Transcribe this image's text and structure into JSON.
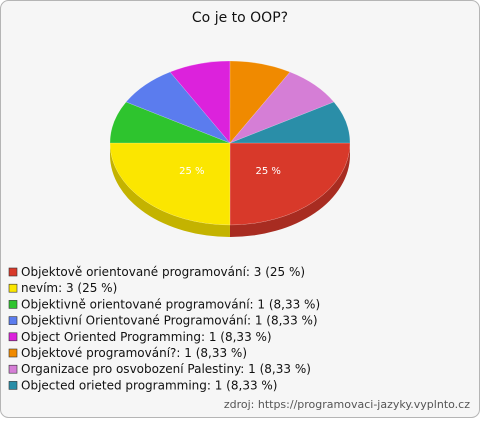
{
  "chart_data": {
    "type": "pie3d",
    "title": "Co je to OOP?",
    "categories": [
      "Objektově orientované programování: 3 (25 %)",
      "nevím: 3 (25 %)",
      "Objektivně orientované programování: 1 (8,33 %)",
      "Objektivní Orientované Programování: 1 (8,33 %)",
      "Object Oriented Programming: 1 (8,33 %)",
      "Objektové programování?: 1 (8,33 %)",
      "Organizace pro osvobození Palestiny: 1 (8,33 %)",
      "Objected orieted programming: 1 (8,33 %)"
    ],
    "values": [
      25,
      25,
      8.33,
      8.33,
      8.33,
      8.33,
      8.33,
      8.33
    ],
    "value_labels": [
      "25 %",
      "25 %",
      null,
      null,
      null,
      null,
      null,
      null
    ],
    "colors": [
      "#d8392a",
      "#fbe600",
      "#2ec42e",
      "#5b7cee",
      "#dc22dc",
      "#f08a00",
      "#d57ed6",
      "#2a8ea8"
    ],
    "source": "zdroj: https://programovaci-jazyky.vyplnto.cz"
  }
}
